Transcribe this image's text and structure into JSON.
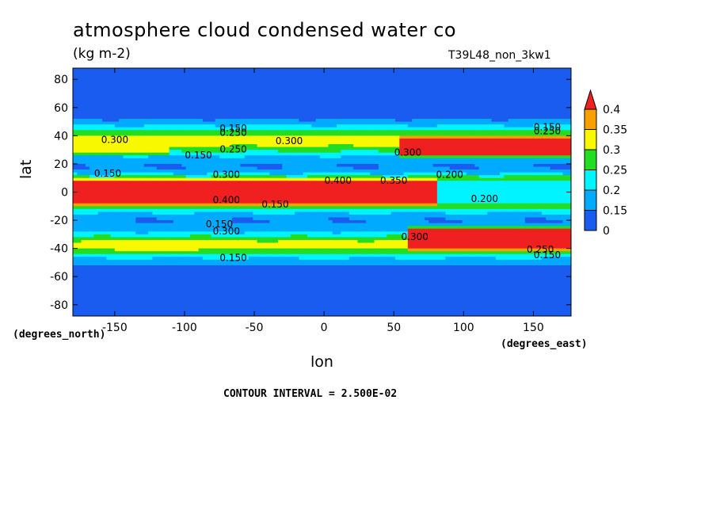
{
  "chart_data": {
    "type": "heatmap",
    "title": "atmosphere cloud condensed water co",
    "subtitle": "(kg m-2)",
    "run_label": "T39L48_non_3kw1",
    "xlabel": "lon",
    "ylabel": "lat",
    "x_unit_label": "(degrees_east)",
    "y_unit_label": "(degrees_north)",
    "footer": "CONTOUR INTERVAL = 2.500E-02",
    "xlim": [
      -180,
      177
    ],
    "ylim": [
      -88,
      88
    ],
    "x_ticks": [
      -150,
      -100,
      -50,
      0,
      50,
      100,
      150
    ],
    "y_ticks": [
      80,
      60,
      40,
      20,
      0,
      -20,
      -40,
      -60,
      -80
    ],
    "x_tick_labels": [
      "-150",
      "-100",
      "-50",
      "0",
      "50",
      "100",
      "150"
    ],
    "y_tick_labels": [
      "80",
      "60",
      "40",
      "20",
      "0",
      "-20",
      "-40",
      "-60",
      "-80"
    ],
    "colorbar": {
      "levels": [
        0,
        0.15,
        0.2,
        0.25,
        0.3,
        0.35,
        0.4
      ],
      "labels": [
        "0",
        "0.15",
        "0.2",
        "0.25",
        "0.3",
        "0.35",
        "0.4"
      ],
      "colors": [
        "#1a5cf0",
        "#00aaff",
        "#00f4ff",
        "#22dd22",
        "#f8f800",
        "#f8a000",
        "#f02020"
      ],
      "extend": "max"
    },
    "zonal_profile": {
      "lat": [
        -88,
        -60,
        -54,
        -50,
        -46,
        -42,
        -38,
        -34,
        -30,
        -26,
        -22,
        -18,
        -14,
        -10,
        -6,
        -2,
        2,
        6,
        10,
        14,
        18,
        22,
        26,
        30,
        34,
        38,
        42,
        46,
        50,
        54,
        60,
        88
      ],
      "value": [
        0.05,
        0.08,
        0.13,
        0.17,
        0.21,
        0.28,
        0.33,
        0.3,
        0.22,
        0.18,
        0.15,
        0.16,
        0.21,
        0.3,
        0.4,
        0.45,
        0.45,
        0.4,
        0.28,
        0.18,
        0.15,
        0.16,
        0.21,
        0.27,
        0.32,
        0.34,
        0.28,
        0.22,
        0.17,
        0.12,
        0.08,
        0.05
      ]
    },
    "features": [
      {
        "lon_min": -180,
        "lon_max": 80,
        "lat_min": -10,
        "lat_max": 9,
        "value": 0.43
      },
      {
        "lon_min": 60,
        "lon_max": 177,
        "lat_min": -43,
        "lat_max": -23,
        "value": 0.42
      },
      {
        "lon_min": 55,
        "lon_max": 177,
        "lat_min": 24,
        "lat_max": 40,
        "value": 0.42
      },
      {
        "lon_min": -180,
        "lon_max": -110,
        "lat_min": 26,
        "lat_max": 40,
        "value": 0.32
      },
      {
        "lon_min": -150,
        "lon_max": -90,
        "lat_min": -44,
        "lat_max": -33,
        "value": 0.32
      },
      {
        "lon_min": 80,
        "lon_max": 177,
        "lat_min": -10,
        "lat_max": 10,
        "value": 0.2
      }
    ],
    "contour_labels": [
      {
        "text": "0.150",
        "lon": -65,
        "lat": 43
      },
      {
        "text": "0.250",
        "lon": -65,
        "lat": 40
      },
      {
        "text": "0.300",
        "lon": -150,
        "lat": 35
      },
      {
        "text": "0.300",
        "lon": -25,
        "lat": 34
      },
      {
        "text": "0.150",
        "lon": -90,
        "lat": 24
      },
      {
        "text": "0.250",
        "lon": -65,
        "lat": 28
      },
      {
        "text": "0.150",
        "lon": 160,
        "lat": 44
      },
      {
        "text": "0.250",
        "lon": 160,
        "lat": 41
      },
      {
        "text": "0.300",
        "lon": 60,
        "lat": 26
      },
      {
        "text": "0.150",
        "lon": -155,
        "lat": 11
      },
      {
        "text": "0.300",
        "lon": -70,
        "lat": 10
      },
      {
        "text": "0.400",
        "lon": 10,
        "lat": 6
      },
      {
        "text": "0.350",
        "lon": 50,
        "lat": 6
      },
      {
        "text": "0.200",
        "lon": 90,
        "lat": 10
      },
      {
        "text": "0.150",
        "lon": -35,
        "lat": -11
      },
      {
        "text": "0.400",
        "lon": -70,
        "lat": -8
      },
      {
        "text": "0.200",
        "lon": 115,
        "lat": -7
      },
      {
        "text": "0.150",
        "lon": -75,
        "lat": -25
      },
      {
        "text": "0.300",
        "lon": -70,
        "lat": -30
      },
      {
        "text": "0.300",
        "lon": 65,
        "lat": -34
      },
      {
        "text": "0.250",
        "lon": 155,
        "lat": -43
      },
      {
        "text": "0.150",
        "lon": 160,
        "lat": -47
      },
      {
        "text": "0.150",
        "lon": -65,
        "lat": -49
      }
    ]
  }
}
